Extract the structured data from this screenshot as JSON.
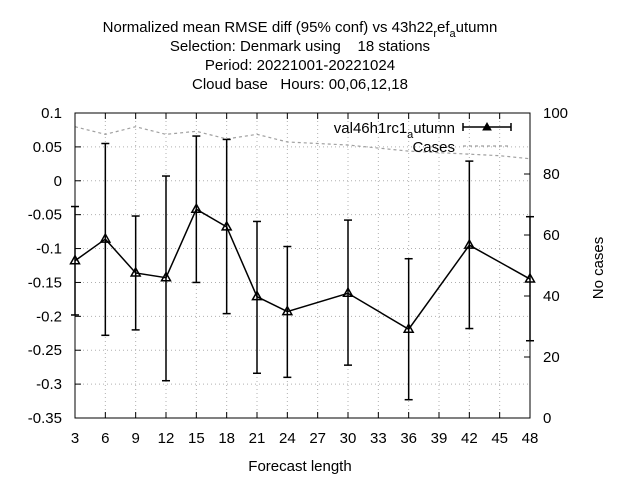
{
  "chart_data": {
    "type": "line",
    "title_lines": [
      "Normalized mean RMSE diff (95% conf) vs 43h22_ref_autumn",
      "Selection: Denmark using    18 stations",
      "Period: 20221001-20221024",
      "Cloud base   Hours: 00,06,12,18"
    ],
    "title_rich": {
      "line1": {
        "a": "Normalized mean RMSE diff (95% conf) vs 43h22",
        "b": "r",
        "c": "ef",
        "d": "a",
        "e": "utumn"
      }
    },
    "xlabel": "Forecast length",
    "ylabel_left": "",
    "ylabel_right": "No cases",
    "xlim": [
      3,
      48
    ],
    "ylim": [
      -0.35,
      0.1
    ],
    "y2lim": [
      0,
      100
    ],
    "x_ticks": [
      "3",
      "6",
      "9",
      "12",
      "15",
      "18",
      "21",
      "24",
      "27",
      "30",
      "33",
      "36",
      "39",
      "42",
      "45",
      "48"
    ],
    "y_ticks": [
      "0.1",
      "0.05",
      "0",
      "-0.05",
      "-0.1",
      "-0.15",
      "-0.2",
      "-0.25",
      "-0.3",
      "-0.35"
    ],
    "y2_ticks": [
      "100",
      "80",
      "60",
      "40",
      "20",
      "0"
    ],
    "grid": true,
    "legend_placement": "top-right",
    "legend": {
      "series": {
        "a": "val46h1rc1",
        "b": "a",
        "c": "utumn"
      },
      "cases": "Cases"
    },
    "series": [
      {
        "name": "val46h1rc1_autumn",
        "color": "#000000",
        "x": [
          3,
          6,
          9,
          12,
          15,
          18,
          21,
          24,
          30,
          36,
          42,
          48
        ],
        "y": [
          -0.118,
          -0.086,
          -0.136,
          -0.143,
          -0.042,
          -0.068,
          -0.171,
          -0.193,
          -0.166,
          -0.219,
          -0.095,
          -0.145
        ],
        "err_low": [
          -0.198,
          -0.228,
          -0.22,
          -0.295,
          -0.15,
          -0.196,
          -0.284,
          -0.29,
          -0.272,
          -0.323,
          -0.218,
          -0.236
        ],
        "err_high": [
          -0.038,
          0.055,
          -0.052,
          0.007,
          0.066,
          0.061,
          -0.06,
          -0.097,
          -0.058,
          -0.115,
          0.029,
          -0.053
        ]
      },
      {
        "name": "Cases",
        "axis": "right",
        "color": "#a0a0a0",
        "dashed": true,
        "x": [
          3,
          6,
          9,
          12,
          15,
          18,
          21,
          24,
          27,
          30,
          33,
          36,
          39,
          42,
          45,
          48
        ],
        "y": [
          95.5,
          93,
          95.5,
          93,
          94,
          91.5,
          93,
          90.5,
          90,
          89.5,
          88.5,
          87.5,
          87,
          86.5,
          86,
          85
        ]
      }
    ]
  }
}
